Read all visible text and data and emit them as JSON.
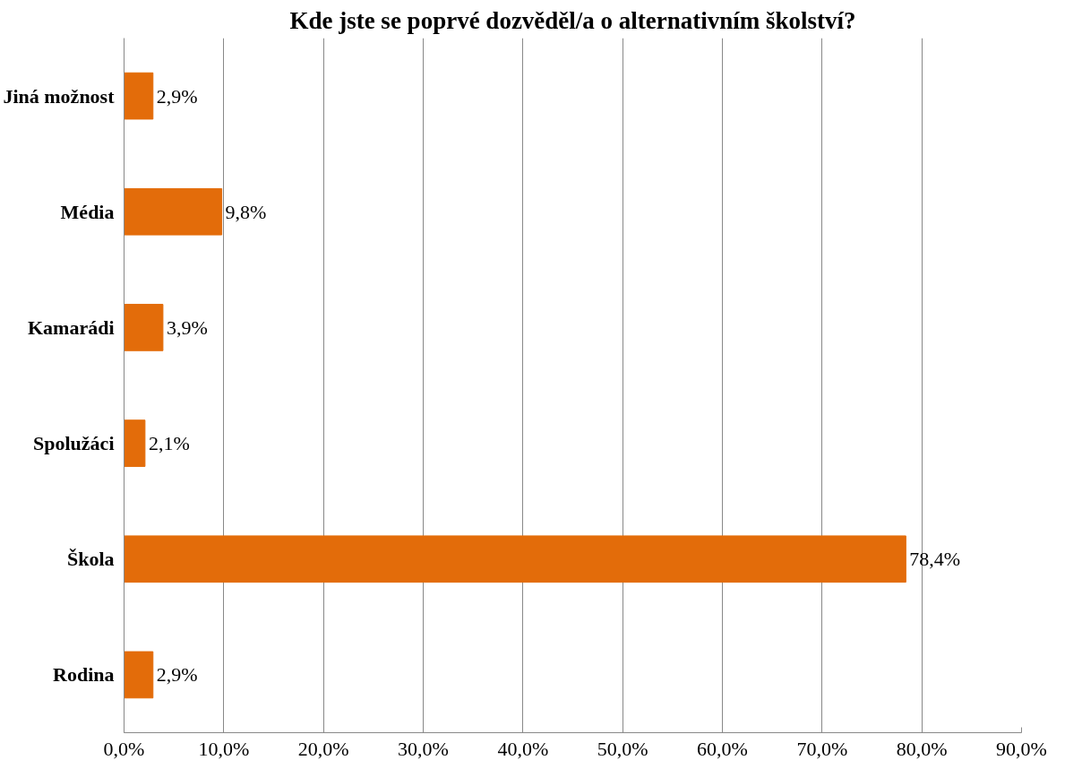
{
  "chart_data": {
    "type": "bar",
    "orientation": "horizontal",
    "title": "Kde jste se poprvé dozvěděl/a o alternativním školství?",
    "categories": [
      "Jiná možnost",
      "Média",
      "Kamarádi",
      "Spolužáci",
      "Škola",
      "Rodina"
    ],
    "values": [
      2.9,
      9.8,
      3.9,
      2.1,
      78.4,
      2.9
    ],
    "value_labels": [
      "2,9%",
      "9,8%",
      "3,9%",
      "2,1%",
      "78,4%",
      "2,9%"
    ],
    "color": "#e36c0a",
    "xlim": [
      0,
      90
    ],
    "xticks": [
      {
        "value": 0,
        "label": "0,0%"
      },
      {
        "value": 10,
        "label": "10,0%"
      },
      {
        "value": 20,
        "label": "20,0%"
      },
      {
        "value": 30,
        "label": "30,0%"
      },
      {
        "value": 40,
        "label": "40,0%"
      },
      {
        "value": 50,
        "label": "50,0%"
      },
      {
        "value": 60,
        "label": "60,0%"
      },
      {
        "value": 70,
        "label": "70,0%"
      },
      {
        "value": 80,
        "label": "80,0%"
      },
      {
        "value": 90,
        "label": "90,0%"
      }
    ],
    "grid": "x"
  }
}
